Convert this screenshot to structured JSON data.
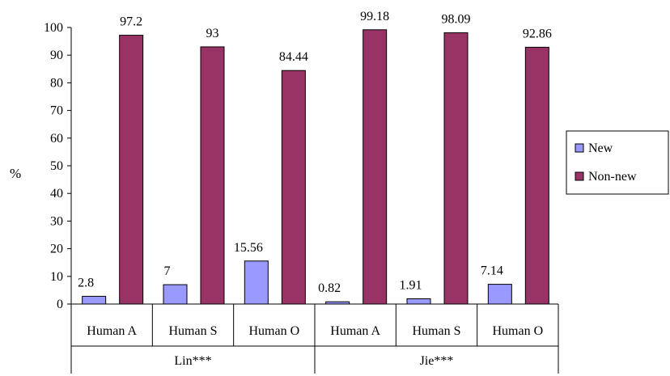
{
  "chart_data": {
    "type": "bar",
    "ylabel": "%",
    "ylim": [
      0,
      100
    ],
    "yticks": [
      0,
      10,
      20,
      30,
      40,
      50,
      60,
      70,
      80,
      90,
      100
    ],
    "grid": false,
    "legend_position": "right",
    "groups": [
      {
        "label": "Lin***",
        "categories": [
          "Human A",
          "Human S",
          "Human O"
        ]
      },
      {
        "label": "Jie***",
        "categories": [
          "Human A",
          "Human S",
          "Human O"
        ]
      }
    ],
    "categories": [
      "Human A",
      "Human S",
      "Human O",
      "Human A",
      "Human S",
      "Human O"
    ],
    "series": [
      {
        "name": "New",
        "color": "#9999ff",
        "values": [
          2.8,
          7,
          15.56,
          0.82,
          1.91,
          7.14
        ],
        "labels": [
          "2.8",
          "7",
          "15.56",
          "0.82",
          "1.91",
          "7.14"
        ]
      },
      {
        "name": "Non-new",
        "color": "#993366",
        "values": [
          97.2,
          93,
          84.44,
          99.18,
          98.09,
          92.86
        ],
        "labels": [
          "97.2",
          "93",
          "84.44",
          "99.18",
          "98.09",
          "92.86"
        ]
      }
    ]
  }
}
